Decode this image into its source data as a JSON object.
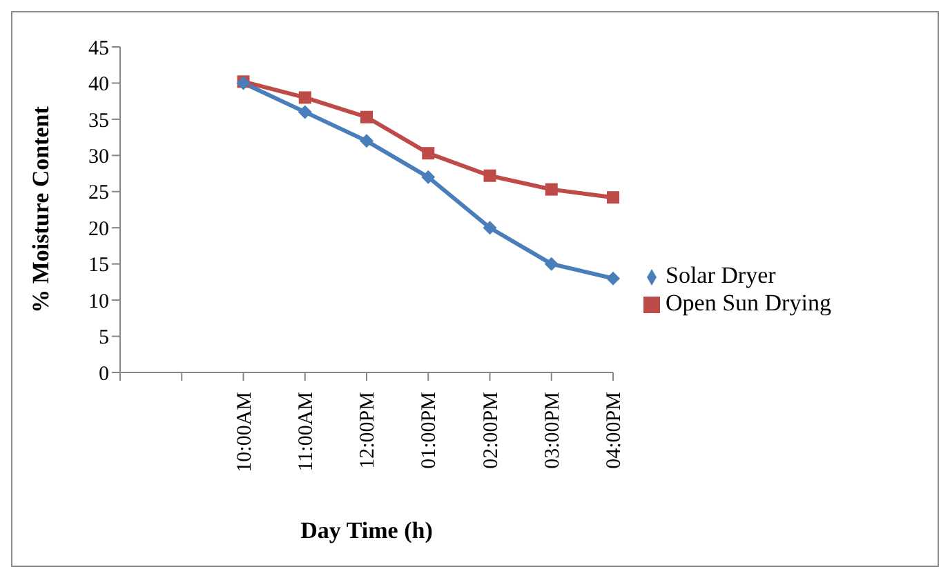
{
  "chart_data": {
    "type": "line",
    "xlabel": "Day Time (h)",
    "ylabel": "% Moisture Content",
    "categories": [
      null,
      null,
      "10:00AM",
      "11:00AM",
      "12:00PM",
      "01:00PM",
      "02:00PM",
      "03:00PM",
      "04:00PM"
    ],
    "series": [
      {
        "name": "Solar Dryer",
        "color": "#4a7ebb",
        "marker": "diamond",
        "values": [
          null,
          null,
          40,
          36,
          32,
          27,
          20,
          15,
          13
        ]
      },
      {
        "name": "Open Sun Drying",
        "color": "#be4b48",
        "marker": "square",
        "values": [
          null,
          null,
          40.2,
          38,
          35.3,
          30.3,
          27.2,
          25.3,
          24.2
        ]
      }
    ],
    "ylim": [
      0,
      45
    ],
    "yticks": [
      0,
      5,
      10,
      15,
      20,
      25,
      30,
      35,
      40,
      45
    ],
    "grid": false,
    "legend": "right"
  }
}
